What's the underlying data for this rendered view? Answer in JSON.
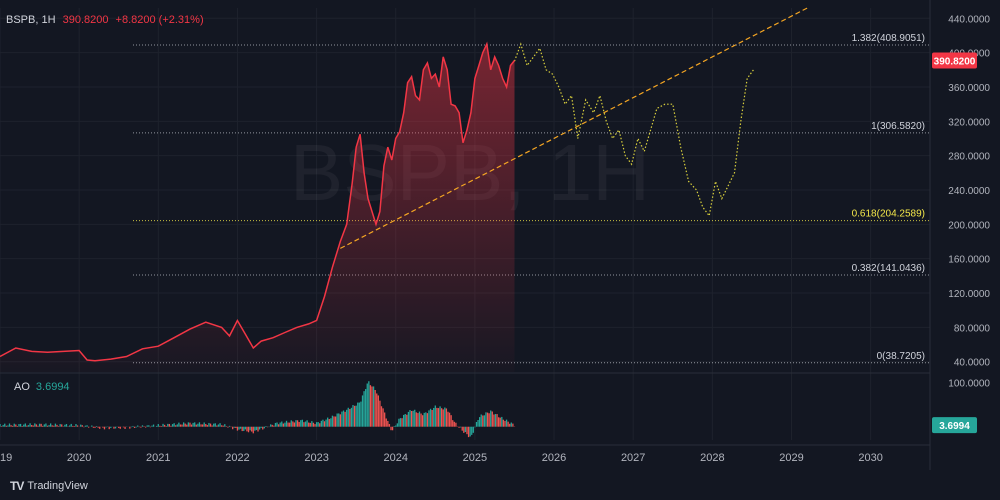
{
  "header": {
    "symbol": "BSPB, 1H",
    "price": "390.8200",
    "change": "+8.8200 (+2.31%)"
  },
  "watermark": "BSPB, 1H",
  "brand": {
    "logo": "TV",
    "name": "TradingView"
  },
  "indicator": {
    "name": "AO",
    "value": "3.6994"
  },
  "colors": {
    "background": "#131722",
    "price_line": "#f23645",
    "forecast": "#d8cf3c",
    "trendline": "#f5a623",
    "fib_golden": "#f4e84a",
    "ao_up": "#26a69a",
    "ao_down": "#ef5350"
  },
  "chart_data": {
    "type": "line",
    "x_ticks": [
      "2019",
      "2020",
      "2021",
      "2022",
      "2023",
      "2024",
      "2025",
      "2026",
      "2027",
      "2028",
      "2029",
      "2030"
    ],
    "y_ticks": [
      "40.0000",
      "80.0000",
      "120.0000",
      "160.0000",
      "200.0000",
      "240.0000",
      "280.0000",
      "320.0000",
      "360.0000",
      "400.0000",
      "440.0000"
    ],
    "ylim": [
      28,
      452
    ],
    "last_price_label": "390.8200",
    "fib_levels": [
      {
        "ratio": "1.382",
        "label": "1.382(408.9051)",
        "value": 408.9051
      },
      {
        "ratio": "1",
        "label": "1(306.5820)",
        "value": 306.582
      },
      {
        "ratio": "0.618",
        "label": "0.618(204.2589)",
        "value": 204.2589
      },
      {
        "ratio": "0.382",
        "label": "0.382(141.0436)",
        "value": 141.0436
      },
      {
        "ratio": "0",
        "label": "0(38.7205)",
        "value": 38.7205
      }
    ],
    "series": [
      {
        "name": "BSPB",
        "x": [
          2019.0,
          2019.2,
          2019.4,
          2019.6,
          2019.8,
          2020.0,
          2020.1,
          2020.2,
          2020.4,
          2020.6,
          2020.8,
          2021.0,
          2021.2,
          2021.4,
          2021.6,
          2021.8,
          2021.9,
          2022.0,
          2022.1,
          2022.2,
          2022.3,
          2022.45,
          2022.6,
          2022.75,
          2022.9,
          2023.0,
          2023.1,
          2023.2,
          2023.3,
          2023.38,
          2023.45,
          2023.5,
          2023.55,
          2023.6,
          2023.65,
          2023.7,
          2023.75,
          2023.8,
          2023.85,
          2023.9,
          2023.95,
          2024.0,
          2024.05,
          2024.1,
          2024.15,
          2024.2,
          2024.25,
          2024.3,
          2024.35,
          2024.4,
          2024.45,
          2024.5,
          2024.55,
          2024.6,
          2024.65,
          2024.7,
          2024.75,
          2024.8,
          2024.85,
          2024.9,
          2024.95,
          2025.0,
          2025.05,
          2025.1,
          2025.15,
          2025.2,
          2025.25,
          2025.3,
          2025.35,
          2025.4,
          2025.45,
          2025.5
        ],
        "y": [
          46,
          56,
          52,
          51,
          52,
          53,
          42,
          41,
          43,
          46,
          55,
          58,
          68,
          78,
          86,
          80,
          70,
          88,
          72,
          56,
          64,
          68,
          74,
          80,
          84,
          88,
          116,
          150,
          180,
          200,
          248,
          290,
          305,
          260,
          230,
          215,
          200,
          215,
          268,
          290,
          275,
          300,
          308,
          330,
          365,
          372,
          350,
          345,
          380,
          388,
          370,
          375,
          360,
          395,
          380,
          340,
          338,
          330,
          295,
          310,
          330,
          370,
          385,
          400,
          410,
          380,
          395,
          385,
          370,
          360,
          385,
          390.82
        ]
      },
      {
        "name": "Forecast",
        "x": [
          2025.5,
          2025.58,
          2025.66,
          2025.74,
          2025.82,
          2025.9,
          2025.98,
          2026.06,
          2026.14,
          2026.22,
          2026.3,
          2026.4,
          2026.5,
          2026.58,
          2026.66,
          2026.74,
          2026.82,
          2026.9,
          2026.98,
          2027.06,
          2027.14,
          2027.22,
          2027.3,
          2027.4,
          2027.5,
          2027.6,
          2027.7,
          2027.8,
          2027.88,
          2027.96,
          2028.04,
          2028.12,
          2028.2,
          2028.28,
          2028.36,
          2028.44,
          2028.52
        ],
        "y": [
          390,
          410,
          385,
          395,
          405,
          380,
          375,
          360,
          340,
          350,
          300,
          345,
          330,
          350,
          320,
          300,
          310,
          280,
          270,
          300,
          285,
          310,
          335,
          340,
          340,
          290,
          250,
          240,
          220,
          210,
          250,
          230,
          245,
          260,
          320,
          370,
          380
        ]
      },
      {
        "name": "Trendline",
        "x": [
          2023.3,
          2029.2
        ],
        "y": [
          172,
          452
        ]
      }
    ],
    "ao": {
      "name": "AO",
      "value": "3.6994",
      "y_ticks": [
        "100.0000"
      ],
      "ylim": [
        -30,
        110
      ],
      "x": [
        2019.0,
        2019.5,
        2020.0,
        2020.3,
        2020.6,
        2021.0,
        2021.4,
        2021.8,
        2022.0,
        2022.2,
        2022.5,
        2022.8,
        2023.0,
        2023.2,
        2023.4,
        2023.55,
        2023.65,
        2023.75,
        2023.85,
        2023.95,
        2024.05,
        2024.2,
        2024.35,
        2024.5,
        2024.65,
        2024.75,
        2024.85,
        2024.95,
        2025.05,
        2025.2,
        2025.35,
        2025.5
      ],
      "y": [
        4,
        5,
        3,
        -3,
        -2,
        3,
        8,
        5,
        -6,
        -12,
        8,
        14,
        8,
        22,
        40,
        55,
        102,
        82,
        35,
        -10,
        18,
        38,
        28,
        45,
        40,
        8,
        -10,
        -25,
        22,
        35,
        18,
        3.6994
      ]
    }
  }
}
